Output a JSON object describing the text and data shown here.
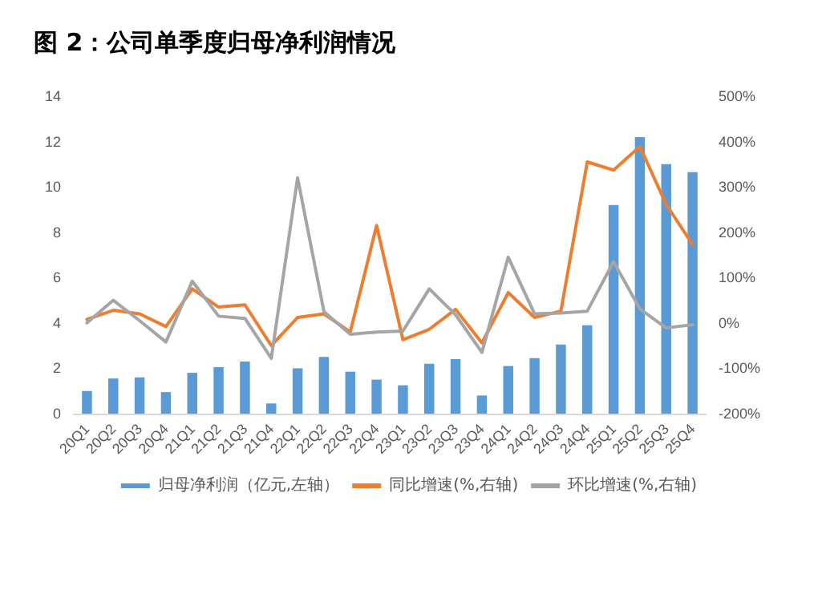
{
  "chart_data": {
    "type": "bar",
    "title": "图 2：公司单季度归母净利润情况",
    "categories": [
      "20Q1",
      "20Q2",
      "20Q3",
      "20Q4",
      "21Q1",
      "21Q2",
      "21Q3",
      "21Q4",
      "22Q1",
      "22Q2",
      "22Q3",
      "22Q4",
      "23Q1",
      "23Q2",
      "23Q3",
      "23Q4",
      "24Q1",
      "24Q2",
      "24Q3",
      "24Q4",
      "25Q1",
      "25Q2",
      "25Q3",
      "25Q4"
    ],
    "series": [
      {
        "name": "归母净利润（亿元,左轴）",
        "color": "#5b9bd5",
        "values": [
          1.0,
          1.55,
          1.6,
          0.95,
          1.8,
          2.05,
          2.3,
          0.45,
          2.0,
          2.5,
          1.85,
          1.5,
          1.25,
          2.2,
          2.4,
          0.8,
          2.1,
          2.45,
          3.05,
          3.9,
          9.2,
          12.2,
          11.0,
          10.65
        ]
      },
      {
        "name": "同比增速(%,右轴)",
        "type": "line",
        "axis": "y2",
        "color": "#ed7d31",
        "values": [
          8,
          28,
          20,
          -8,
          75,
          35,
          40,
          -50,
          12,
          20,
          -20,
          215,
          -37,
          -14,
          30,
          -44,
          67,
          12,
          26,
          355,
          337,
          389,
          261,
          173
        ]
      },
      {
        "name": "环比增速(%,右轴)",
        "type": "line",
        "axis": "y2",
        "color": "#a5a5a5",
        "values": [
          0,
          50,
          5,
          -42,
          92,
          15,
          10,
          -78,
          320,
          25,
          -25,
          -20,
          -18,
          75,
          18,
          -65,
          145,
          20,
          22,
          26,
          135,
          31,
          -11,
          -4
        ]
      }
    ],
    "ylim": [
      0,
      14
    ],
    "yticks": [
      0,
      2,
      4,
      6,
      8,
      10,
      12,
      14
    ],
    "y2lim": [
      -200,
      500
    ],
    "y2ticks": [
      {
        "value": -200,
        "label": "-200%"
      },
      {
        "value": -100,
        "label": "-100%"
      },
      {
        "value": 0,
        "label": "0%"
      },
      {
        "value": 100,
        "label": "100%"
      },
      {
        "value": 200,
        "label": "200%"
      },
      {
        "value": 300,
        "label": "300%"
      },
      {
        "value": 400,
        "label": "400%"
      },
      {
        "value": 500,
        "label": "500%"
      }
    ],
    "legend": "bottom",
    "grid": false,
    "marker": "none",
    "line_style": "solid"
  }
}
